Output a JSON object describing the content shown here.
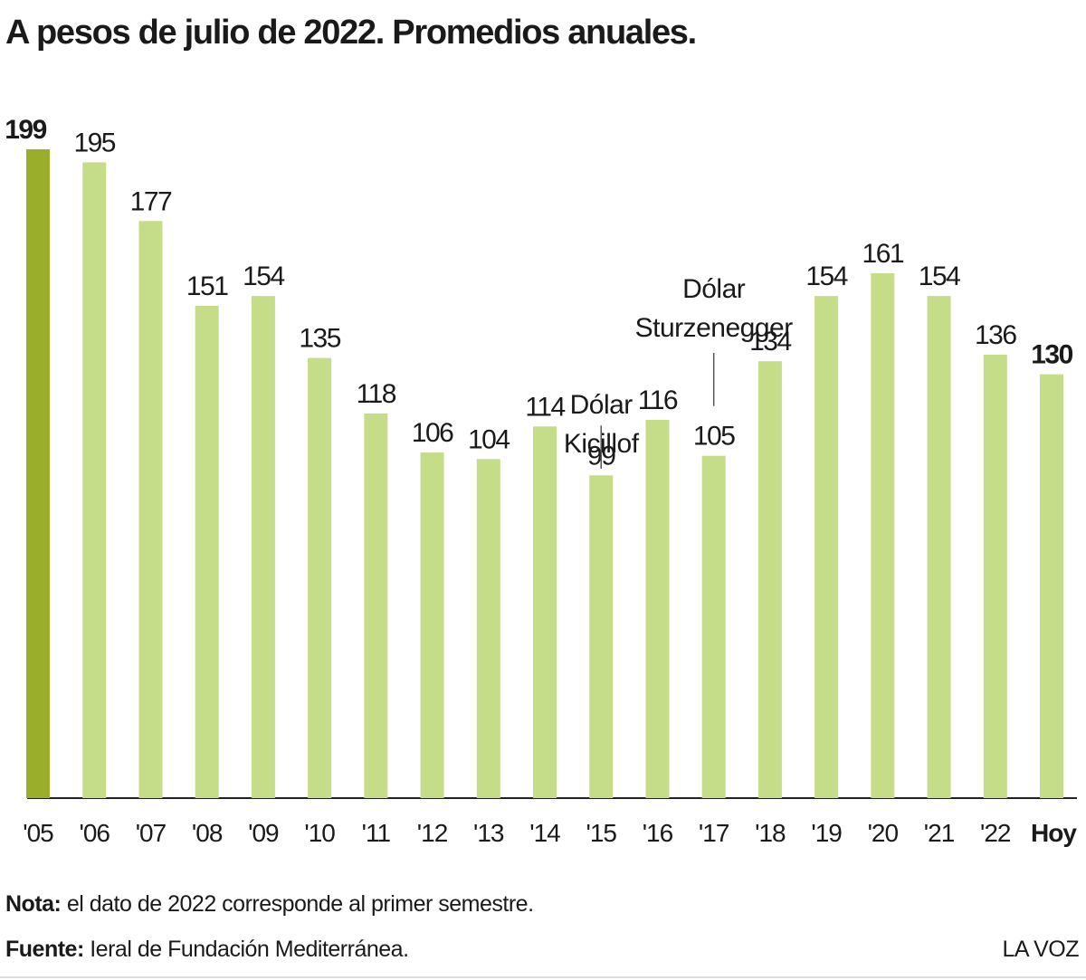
{
  "chart_data": {
    "type": "bar",
    "title": "A pesos de julio de 2022. Promedios anuales.",
    "categories": [
      "'05",
      "'06",
      "'07",
      "'08",
      "'09",
      "'10",
      "'11",
      "'12",
      "'13",
      "'14",
      "'15",
      "'16",
      "'17",
      "'18",
      "'19",
      "'20",
      "'21",
      "'22",
      "Hoy"
    ],
    "values": [
      199,
      195,
      177,
      151,
      154,
      135,
      118,
      106,
      104,
      114,
      99,
      116,
      105,
      134,
      154,
      161,
      154,
      136,
      130
    ],
    "colors": [
      "#9aae2b",
      "#c5dc89",
      "#c5dc89",
      "#c5dc89",
      "#c5dc89",
      "#c5dc89",
      "#c5dc89",
      "#c5dc89",
      "#c5dc89",
      "#c5dc89",
      "#c5dc89",
      "#c5dc89",
      "#c5dc89",
      "#c5dc89",
      "#c5dc89",
      "#c5dc89",
      "#c5dc89",
      "#c5dc89",
      "#c5dc89"
    ],
    "annotations": [
      {
        "category": "'15",
        "lines": [
          "Dólar",
          "Kicillof"
        ]
      },
      {
        "category": "'17",
        "lines": [
          "Dólar",
          "Sturzenegger"
        ]
      }
    ],
    "note": {
      "label": "Nota:",
      "text": "el dato de 2022 corresponde al primer semestre."
    },
    "source": {
      "label": "Fuente:",
      "text": "Ieral de Fundación Mediterránea."
    },
    "brand": "LA VOZ"
  }
}
